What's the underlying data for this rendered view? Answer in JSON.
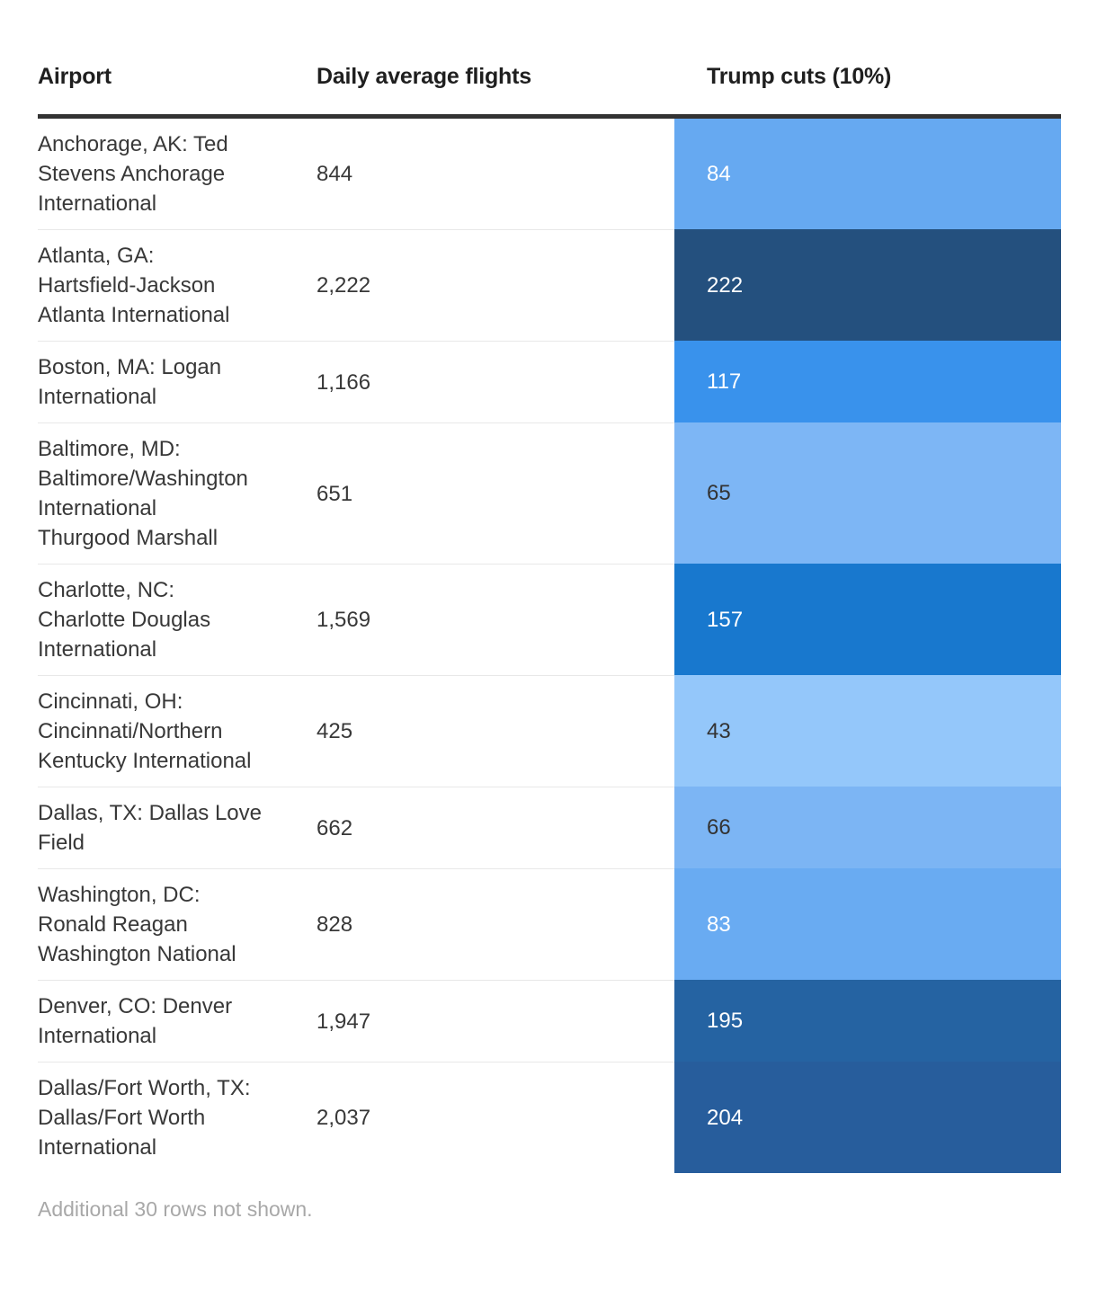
{
  "table": {
    "headers": {
      "airport": "Airport",
      "daily_avg": "Daily average flights",
      "cuts": "Trump cuts (10%)"
    },
    "rows": [
      {
        "airport": "Anchorage, AK: Ted\nStevens Anchorage\nInternational",
        "daily_avg": "844",
        "cuts": "84",
        "bg": "#66a9f1",
        "fg": "#ffffff"
      },
      {
        "airport": "Atlanta, GA:\nHartsfield-Jackson\nAtlanta International",
        "daily_avg": "2,222",
        "cuts": "222",
        "bg": "#24507e",
        "fg": "#ffffff"
      },
      {
        "airport": "Boston, MA: Logan\nInternational",
        "daily_avg": "1,166",
        "cuts": "117",
        "bg": "#3992ec",
        "fg": "#ffffff"
      },
      {
        "airport": "Baltimore, MD:\nBaltimore/Washington\nInternational\nThurgood Marshall",
        "daily_avg": "651",
        "cuts": "65",
        "bg": "#7db6f5",
        "fg": "#333333"
      },
      {
        "airport": "Charlotte, NC:\nCharlotte Douglas\nInternational",
        "daily_avg": "1,569",
        "cuts": "157",
        "bg": "#1878ce",
        "fg": "#ffffff"
      },
      {
        "airport": "Cincinnati, OH:\nCincinnati/Northern\nKentucky International",
        "daily_avg": "425",
        "cuts": "43",
        "bg": "#94c7fa",
        "fg": "#333333"
      },
      {
        "airport": "Dallas, TX: Dallas Love\nField",
        "daily_avg": "662",
        "cuts": "66",
        "bg": "#7cb5f4",
        "fg": "#333333"
      },
      {
        "airport": "Washington, DC:\nRonald Reagan\nWashington National",
        "daily_avg": "828",
        "cuts": "83",
        "bg": "#69abf2",
        "fg": "#ffffff"
      },
      {
        "airport": "Denver, CO: Denver\nInternational",
        "daily_avg": "1,947",
        "cuts": "195",
        "bg": "#2563a2",
        "fg": "#ffffff"
      },
      {
        "airport": "Dallas/Fort Worth, TX:\nDallas/Fort Worth\nInternational",
        "daily_avg": "2,037",
        "cuts": "204",
        "bg": "#275d9c",
        "fg": "#ffffff"
      }
    ],
    "footnote": "Additional 30 rows not shown."
  },
  "chart_data": {
    "type": "table",
    "columns": [
      "Airport",
      "Daily average flights",
      "Trump cuts (10%)"
    ],
    "rows": [
      [
        "Anchorage, AK: Ted Stevens Anchorage International",
        844,
        84
      ],
      [
        "Atlanta, GA: Hartsfield-Jackson Atlanta International",
        2222,
        222
      ],
      [
        "Boston, MA: Logan International",
        1166,
        117
      ],
      [
        "Baltimore, MD: Baltimore/Washington International Thurgood Marshall",
        651,
        65
      ],
      [
        "Charlotte, NC: Charlotte Douglas International",
        1569,
        157
      ],
      [
        "Cincinnati, OH: Cincinnati/Northern Kentucky International",
        425,
        43
      ],
      [
        "Dallas, TX: Dallas Love Field",
        662,
        66
      ],
      [
        "Washington, DC: Ronald Reagan Washington National",
        828,
        83
      ],
      [
        "Denver, CO: Denver International",
        1947,
        195
      ],
      [
        "Dallas/Fort Worth, TX: Dallas/Fort Worth International",
        2037,
        204
      ]
    ],
    "heatmap_column": "Trump cuts (10%)",
    "heatmap_range": [
      43,
      222
    ],
    "heatmap_colors_light_to_dark": [
      "#94c7fa",
      "#24507e"
    ],
    "footnote": "Additional 30 rows not shown."
  }
}
